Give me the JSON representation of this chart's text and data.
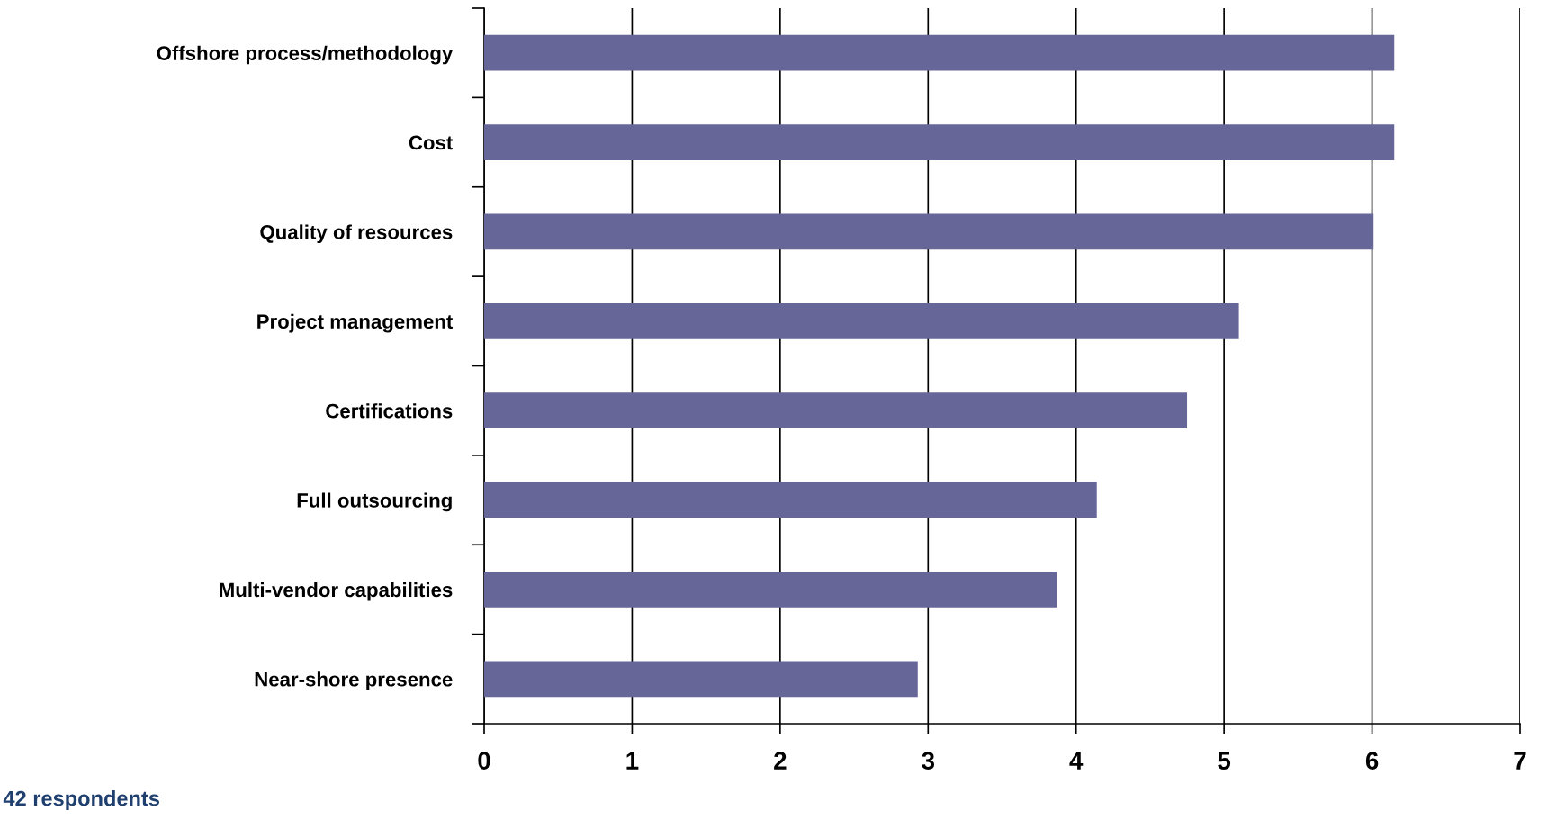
{
  "chart_data": {
    "type": "bar",
    "orientation": "horizontal",
    "categories": [
      "Offshore process/methodology",
      "Cost",
      "Quality of resources",
      "Project management",
      "Certifications",
      "Full outsourcing",
      "Multi-vendor capabilities",
      "Near-shore presence"
    ],
    "values": [
      6.15,
      6.15,
      6.01,
      5.1,
      4.75,
      4.14,
      3.87,
      2.93
    ],
    "color": "#666699",
    "xlim": [
      0,
      7
    ],
    "xticks": [
      0,
      1,
      2,
      3,
      4,
      5,
      6,
      7
    ],
    "grid": "x",
    "legend": false,
    "annotations": [
      "42 respondents"
    ]
  }
}
